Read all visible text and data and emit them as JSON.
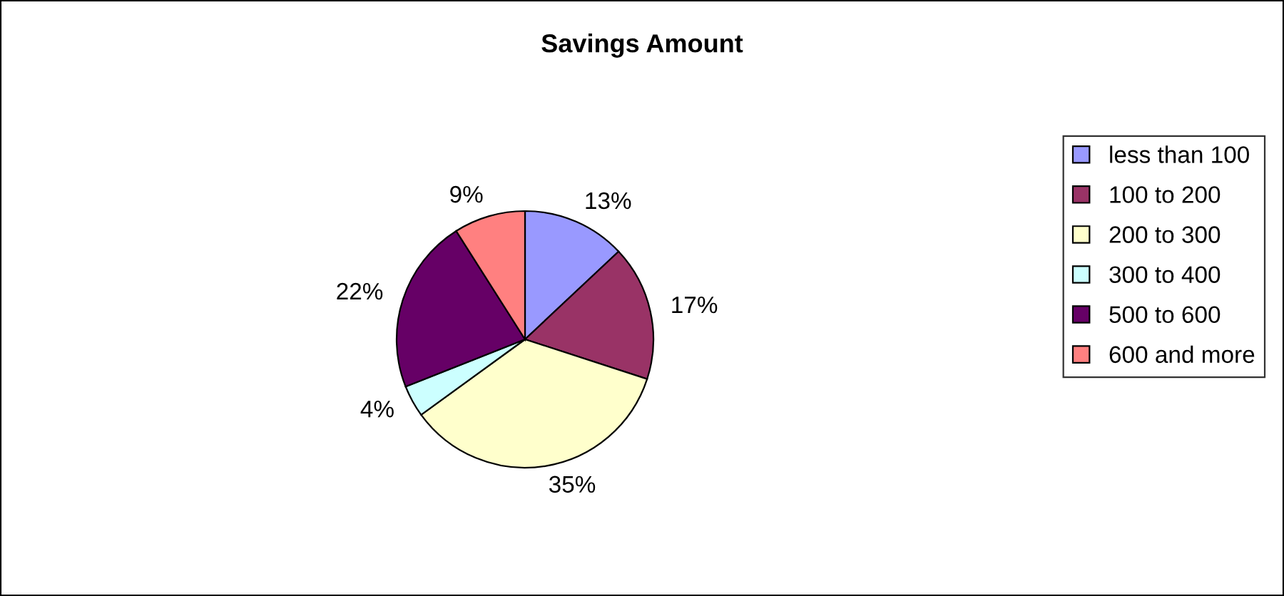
{
  "chart_data": {
    "type": "pie",
    "title": "Savings Amount",
    "categories": [
      "less than 100",
      "100 to 200",
      "200 to 300",
      "300 to 400",
      "500 to 600",
      "600 and more"
    ],
    "values": [
      13,
      17,
      35,
      4,
      22,
      9
    ],
    "colors": [
      "#9999ff",
      "#993366",
      "#ffffcc",
      "#ccffff",
      "#660066",
      "#ff8080"
    ],
    "value_labels": [
      "13%",
      "17%",
      "35%",
      "4%",
      "22%",
      "9%"
    ],
    "legend": "right"
  }
}
